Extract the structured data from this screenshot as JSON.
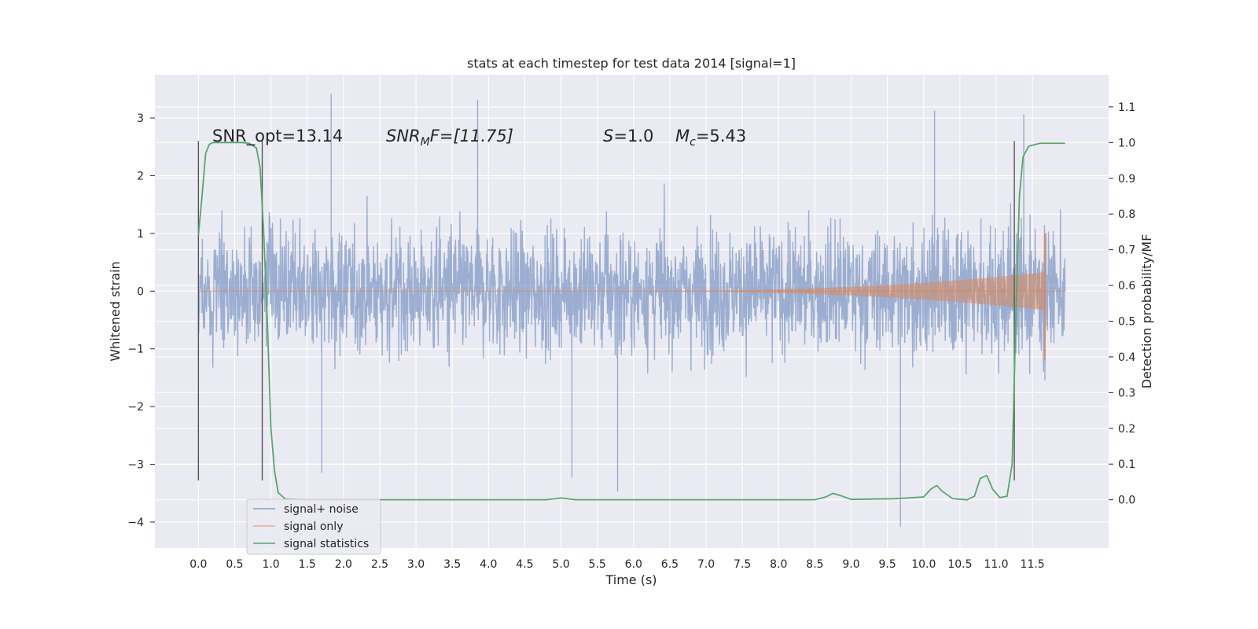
{
  "chart_data": {
    "type": "line",
    "title": "stats at each timestep for test data 2014 [signal=1]",
    "xlabel": "Time (s)",
    "ylabel": "Whitened strain",
    "y2label": "Detection probability/MF",
    "xlim": [
      -0.6,
      12.55
    ],
    "ylim": [
      -4.45,
      3.75
    ],
    "y2lim": [
      -0.135,
      1.19
    ],
    "x_ticks": [
      "0.0",
      "0.5",
      "1.0",
      "1.5",
      "2.0",
      "2.5",
      "3.0",
      "3.5",
      "4.0",
      "4.5",
      "5.0",
      "5.5",
      "6.0",
      "6.5",
      "7.0",
      "7.5",
      "8.0",
      "8.5",
      "9.0",
      "9.5",
      "10.0",
      "10.5",
      "11.0",
      "11.5"
    ],
    "y_ticks": [
      "−4",
      "−3",
      "−2",
      "−1",
      "0",
      "1",
      "2",
      "3"
    ],
    "y2_ticks": [
      "0.0",
      "0.1",
      "0.2",
      "0.3",
      "0.4",
      "0.5",
      "0.6",
      "0.7",
      "0.8",
      "0.9",
      "1.0",
      "1.1"
    ],
    "grid": true,
    "legend_position": "lower-left",
    "annotations": {
      "snr_opt": "SNR_opt=13.14",
      "snr_mf": {
        "prefix": "SNR",
        "sub": "M",
        "suffix": "F=[11.75]"
      },
      "s": {
        "sym": "S",
        "rest": "=1.0"
      },
      "mc": {
        "sym": "M",
        "sub": "c",
        "rest": "=5.43"
      }
    },
    "series": [
      {
        "name": "signal+ noise",
        "color": "#4c72b0",
        "t_range": [
          0.0,
          11.95
        ],
        "envelope_sigma": 0.75,
        "extremes": [
          [
            1.83,
            3.42
          ],
          [
            3.85,
            3.32
          ],
          [
            10.15,
            3.13
          ],
          [
            11.38,
            3.06
          ],
          [
            9.68,
            -4.08
          ],
          [
            5.78,
            -3.47
          ],
          [
            5.15,
            -3.23
          ],
          [
            1.7,
            -3.15
          ]
        ]
      },
      {
        "name": "signal only",
        "color": "#dd8452",
        "chirp_start": 5.5,
        "merger_time": 11.67,
        "peak_amplitude": 1.0,
        "ringdown_amplitude": -1.2
      },
      {
        "name": "signal statistics",
        "color": "#55a868",
        "points": [
          [
            0.0,
            0.74
          ],
          [
            0.05,
            0.85
          ],
          [
            0.1,
            0.97
          ],
          [
            0.15,
            0.995
          ],
          [
            0.2,
            1.0
          ],
          [
            0.6,
            1.0
          ],
          [
            0.7,
            0.998
          ],
          [
            0.8,
            0.985
          ],
          [
            0.85,
            0.93
          ],
          [
            0.9,
            0.75
          ],
          [
            0.95,
            0.5
          ],
          [
            1.0,
            0.2
          ],
          [
            1.05,
            0.08
          ],
          [
            1.1,
            0.02
          ],
          [
            1.2,
            0.002
          ],
          [
            1.5,
            0.0
          ],
          [
            4.8,
            0.0
          ],
          [
            5.0,
            0.005
          ],
          [
            5.2,
            0.0
          ],
          [
            8.5,
            0.0
          ],
          [
            8.65,
            0.008
          ],
          [
            8.75,
            0.018
          ],
          [
            8.85,
            0.012
          ],
          [
            9.0,
            0.001
          ],
          [
            9.6,
            0.003
          ],
          [
            10.0,
            0.008
          ],
          [
            10.1,
            0.03
          ],
          [
            10.18,
            0.04
          ],
          [
            10.25,
            0.025
          ],
          [
            10.4,
            0.003
          ],
          [
            10.6,
            0.0
          ],
          [
            10.7,
            0.01
          ],
          [
            10.78,
            0.06
          ],
          [
            10.87,
            0.068
          ],
          [
            10.95,
            0.03
          ],
          [
            11.05,
            0.006
          ],
          [
            11.15,
            0.01
          ],
          [
            11.22,
            0.1
          ],
          [
            11.27,
            0.5
          ],
          [
            11.32,
            0.85
          ],
          [
            11.37,
            0.96
          ],
          [
            11.45,
            0.99
          ],
          [
            11.6,
            0.998
          ],
          [
            11.95,
            0.998
          ]
        ]
      }
    ],
    "vertical_markers": [
      {
        "x": 0.0,
        "y_range": [
          -3.28,
          2.6
        ]
      },
      {
        "x": 0.88,
        "y_range": [
          -3.28,
          2.6
        ]
      },
      {
        "x": 11.25,
        "y_range": [
          -3.28,
          2.6
        ]
      }
    ]
  }
}
